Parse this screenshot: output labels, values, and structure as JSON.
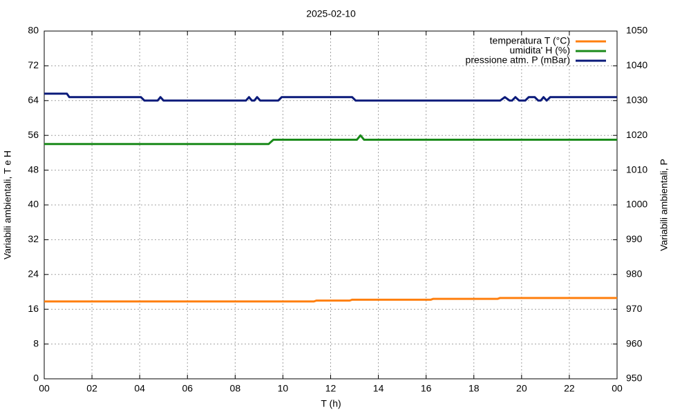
{
  "chart_data": {
    "type": "line",
    "title": "2025-02-10",
    "xlabel": "T (h)",
    "ylabel": "Variabili ambientali, T e H",
    "y2label": "Variabili ambientali, P",
    "xlim": [
      0,
      24
    ],
    "xticks": [
      {
        "value": 0,
        "label": "00"
      },
      {
        "value": 2,
        "label": "02"
      },
      {
        "value": 4,
        "label": "04"
      },
      {
        "value": 6,
        "label": "06"
      },
      {
        "value": 8,
        "label": "08"
      },
      10,
      12,
      14,
      16,
      18,
      20,
      22,
      {
        "value": 24,
        "label": "00"
      }
    ],
    "ylim": [
      0,
      80
    ],
    "yticks": [
      0,
      8,
      16,
      24,
      32,
      40,
      48,
      56,
      64,
      72,
      80
    ],
    "y2lim": [
      950,
      1050
    ],
    "y2ticks": [
      950,
      960,
      970,
      980,
      990,
      1000,
      1010,
      1020,
      1030,
      1040,
      1050
    ],
    "grid": true,
    "legend": "top-right",
    "series": [
      {
        "name": "temperatura T (°C)",
        "color": "#ff7f0e",
        "x": [
          0,
          11.3,
          11.4,
          12.8,
          12.9,
          16.2,
          16.3,
          19.0,
          19.1,
          24
        ],
        "values": [
          17.8,
          17.8,
          18.0,
          18.0,
          18.2,
          18.2,
          18.4,
          18.4,
          18.6,
          18.6
        ]
      },
      {
        "name": "umidita' H (%)",
        "color": "#1a8a1a",
        "x": [
          0,
          9.4,
          9.6,
          13.1,
          13.25,
          13.4,
          24
        ],
        "values": [
          54,
          54,
          55,
          55,
          56,
          55,
          55
        ]
      },
      {
        "name": "pressione atm. P (mBar)",
        "color": "#0a1a7a",
        "axis": "y2",
        "x": [
          0,
          0.95,
          1.05,
          4.05,
          4.2,
          4.75,
          4.87,
          5.0,
          8.45,
          8.58,
          8.7,
          8.8,
          8.92,
          9.05,
          9.8,
          9.95,
          12.9,
          13.05,
          19.1,
          19.3,
          19.5,
          19.6,
          19.74,
          19.9,
          20.15,
          20.3,
          20.55,
          20.7,
          20.8,
          20.92,
          21.05,
          21.2,
          24
        ],
        "values": [
          1032,
          1032,
          1031,
          1031,
          1030,
          1030,
          1031,
          1030,
          1030,
          1031,
          1030,
          1030,
          1031,
          1030,
          1030,
          1031,
          1031,
          1030,
          1030,
          1031,
          1030,
          1030,
          1031,
          1030,
          1030,
          1031,
          1031,
          1030,
          1030,
          1031,
          1030,
          1031,
          1031
        ]
      }
    ]
  }
}
